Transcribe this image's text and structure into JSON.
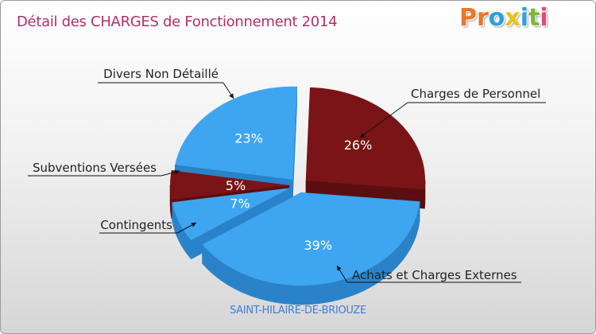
{
  "title": "Détail des CHARGES de Fonctionnement 2014",
  "logo": {
    "letters": [
      "P",
      "r",
      "o",
      "x",
      "i",
      "t",
      "i"
    ],
    "colors": [
      "#e8782a",
      "#e8782a",
      "#2e9fd8",
      "#e8c21e",
      "#2e9fd8",
      "#7cb63a",
      "#e04a7a"
    ]
  },
  "chart_data": {
    "type": "pie",
    "title": "Détail des CHARGES de Fonctionnement 2014",
    "slices": [
      {
        "label": "Charges de Personnel",
        "value": 26,
        "value_label": "26%",
        "color": "#7a1416",
        "side": "#5a0e10"
      },
      {
        "label": "Achats et Charges Externes",
        "value": 39,
        "value_label": "39%",
        "color": "#3ea6f0",
        "side": "#2a83c9"
      },
      {
        "label": "Contingents",
        "value": 7,
        "value_label": "7%",
        "color": "#3ea6f0",
        "side": "#2a83c9"
      },
      {
        "label": "Subventions Versées",
        "value": 5,
        "value_label": "5%",
        "color": "#7a1416",
        "side": "#5a0e10"
      },
      {
        "label": "Divers Non Détaillé",
        "value": 23,
        "value_label": "23%",
        "color": "#3ea6f0",
        "side": "#2a83c9"
      }
    ]
  },
  "footer": "SAINT-HILAIRE-DE-BRIOUZE"
}
